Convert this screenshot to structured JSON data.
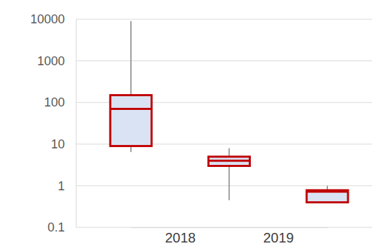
{
  "chart_data": {
    "type": "box",
    "categories": [
      null,
      "2018",
      null,
      "2019",
      null
    ],
    "min": [
      6.5,
      null,
      0.45,
      null,
      0.4
    ],
    "q1": [
      9,
      null,
      3,
      null,
      0.4
    ],
    "median": [
      70,
      null,
      4,
      null,
      0.72
    ],
    "q3": [
      150,
      null,
      5,
      null,
      0.78
    ],
    "max": [
      9000,
      null,
      8,
      null,
      1.0
    ],
    "color": "#c00000",
    "log": "y",
    "grid": true,
    "ylim": [
      0.1,
      10000
    ],
    "yticks": [
      0.1,
      1,
      10,
      100,
      1000,
      10000
    ]
  }
}
